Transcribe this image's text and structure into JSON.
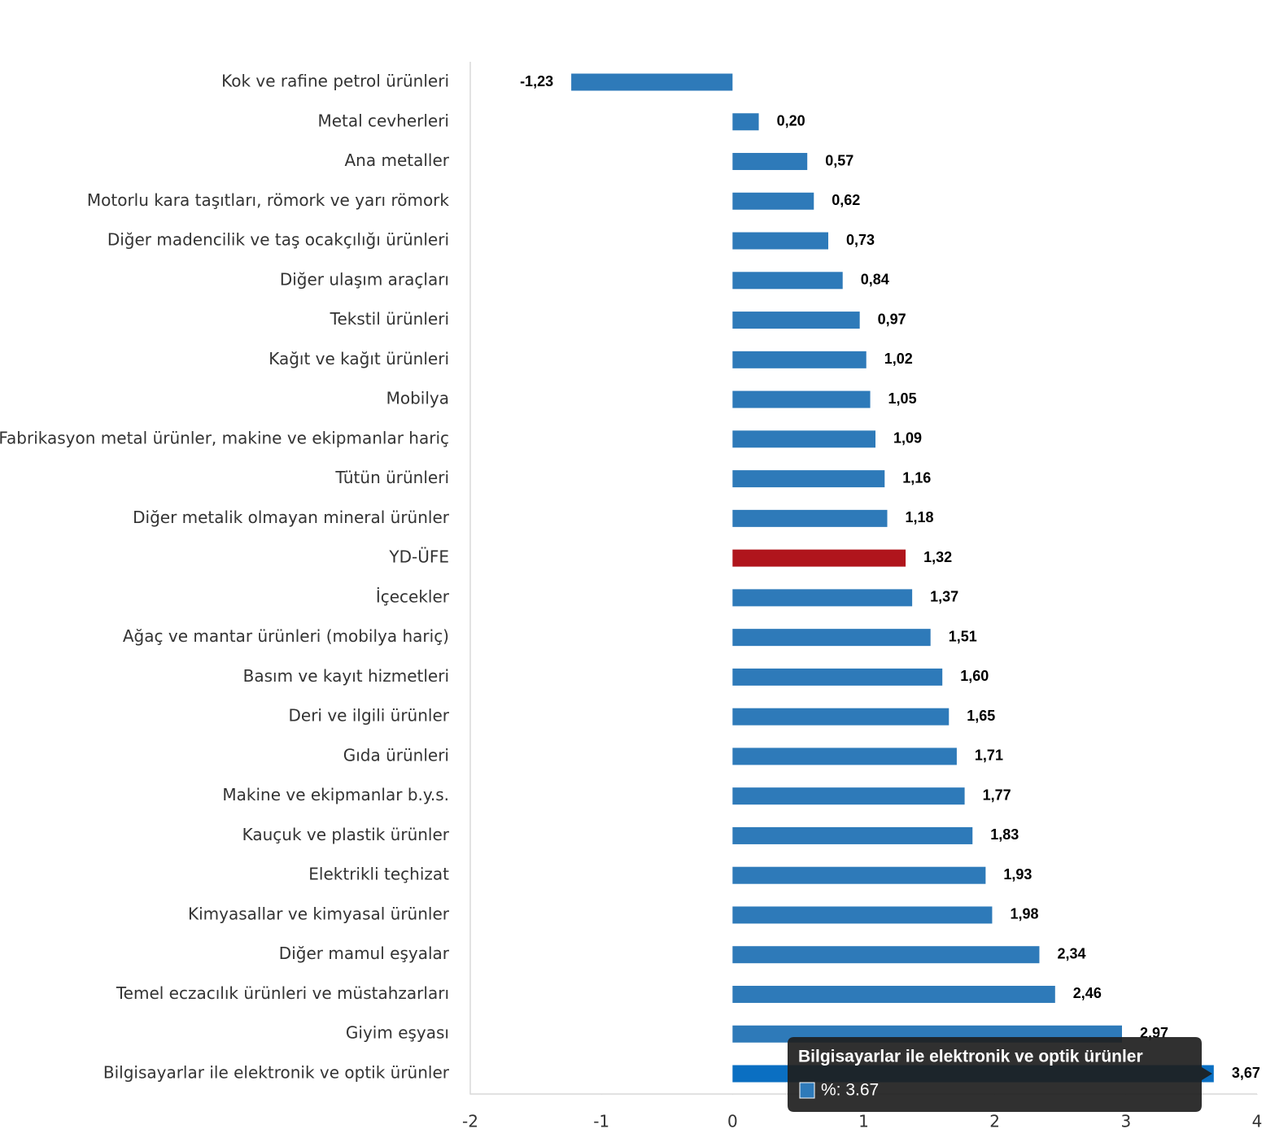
{
  "chart_data": {
    "type": "bar",
    "orientation": "horizontal",
    "categories": [
      "Kok ve rafine petrol ürünleri",
      "Metal cevherleri",
      "Ana metaller",
      "Motorlu kara taşıtları, römork ve yarı römork",
      "Diğer madencilik ve taş ocakçılığı ürünleri",
      "Diğer ulaşım araçları",
      "Tekstil ürünleri",
      "Kağıt ve kağıt ürünleri",
      "Mobilya",
      "Fabrikasyon metal ürünler, makine ve ekipmanlar hariç",
      "Tütün ürünleri",
      "Diğer metalik olmayan mineral ürünler",
      "YD-ÜFE",
      "İçecekler",
      "Ağaç ve mantar ürünleri (mobilya hariç)",
      "Basım ve kayıt hizmetleri",
      "Deri ve ilgili ürünler",
      "Gıda ürünleri",
      "Makine ve ekipmanlar b.y.s.",
      "Kauçuk ve plastik ürünler",
      "Elektrikli teçhizat",
      "Kimyasallar ve kimyasal ürünler",
      "Diğer mamul eşyalar",
      "Temel eczacılık ürünleri ve müstahzarları",
      "Giyim eşyası",
      "Bilgisayarlar ile elektronik ve optik ürünler"
    ],
    "values": [
      -1.23,
      0.2,
      0.57,
      0.62,
      0.73,
      0.84,
      0.97,
      1.02,
      1.05,
      1.09,
      1.16,
      1.18,
      1.32,
      1.37,
      1.51,
      1.6,
      1.65,
      1.71,
      1.77,
      1.83,
      1.93,
      1.98,
      2.34,
      2.46,
      2.97,
      3.67
    ],
    "value_labels": [
      "-1,23",
      "0,20",
      "0,57",
      "0,62",
      "0,73",
      "0,84",
      "0,97",
      "1,02",
      "1,05",
      "1,09",
      "1,16",
      "1,18",
      "1,32",
      "1,37",
      "1,51",
      "1,60",
      "1,65",
      "1,71",
      "1,77",
      "1,83",
      "1,93",
      "1,98",
      "2,34",
      "2,46",
      "2,97",
      "3,67"
    ],
    "colors": [
      "#2e7ab9",
      "#2e7ab9",
      "#2e7ab9",
      "#2e7ab9",
      "#2e7ab9",
      "#2e7ab9",
      "#2e7ab9",
      "#2e7ab9",
      "#2e7ab9",
      "#2e7ab9",
      "#2e7ab9",
      "#2e7ab9",
      "#b0151c",
      "#2e7ab9",
      "#2e7ab9",
      "#2e7ab9",
      "#2e7ab9",
      "#2e7ab9",
      "#2e7ab9",
      "#2e7ab9",
      "#2e7ab9",
      "#2e7ab9",
      "#2e7ab9",
      "#2e7ab9",
      "#2e7ab9",
      "#0a6fc2"
    ],
    "xlim": [
      -2,
      4
    ],
    "xticks": [
      -2,
      -1,
      0,
      1,
      2,
      3,
      4
    ],
    "grid": false,
    "tooltip": {
      "title": "Bilgisayarlar ile elektronik ve optik ürünler",
      "text": "%: 3.67",
      "color": "#2e7ab9"
    }
  }
}
